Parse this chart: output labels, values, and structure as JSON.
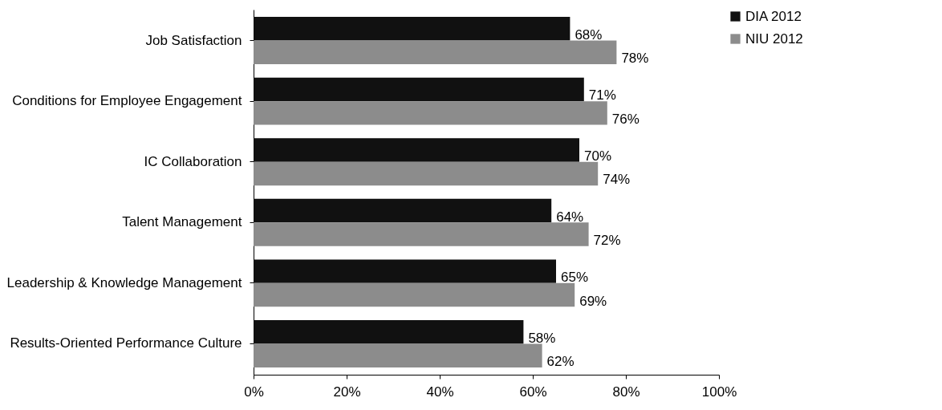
{
  "chart_data": {
    "type": "bar",
    "orientation": "horizontal",
    "categories": [
      "Job Satisfaction",
      "Conditions for Employee Engagement",
      "IC Collaboration",
      "Talent Management",
      "Leadership & Knowledge Management",
      "Results-Oriented Performance Culture"
    ],
    "series": [
      {
        "name": "DIA 2012",
        "color": "#111111",
        "values": [
          68,
          71,
          70,
          64,
          65,
          58
        ],
        "value_labels": [
          "68%",
          "71%",
          "70%",
          "64%",
          "65%",
          "58%"
        ]
      },
      {
        "name": "NIU 2012",
        "color": "#8c8c8c",
        "values": [
          78,
          76,
          74,
          72,
          69,
          62
        ],
        "value_labels": [
          "78%",
          "76%",
          "74%",
          "72%",
          "69%",
          "62%"
        ]
      }
    ],
    "xlim": [
      0,
      100
    ],
    "xticks": [
      {
        "value": 0,
        "label": "0%"
      },
      {
        "value": 20,
        "label": "20%"
      },
      {
        "value": 40,
        "label": "40%"
      },
      {
        "value": 60,
        "label": "60%"
      },
      {
        "value": 80,
        "label": "80%"
      },
      {
        "value": 100,
        "label": "100%"
      }
    ],
    "grid": false,
    "legend": "right"
  }
}
